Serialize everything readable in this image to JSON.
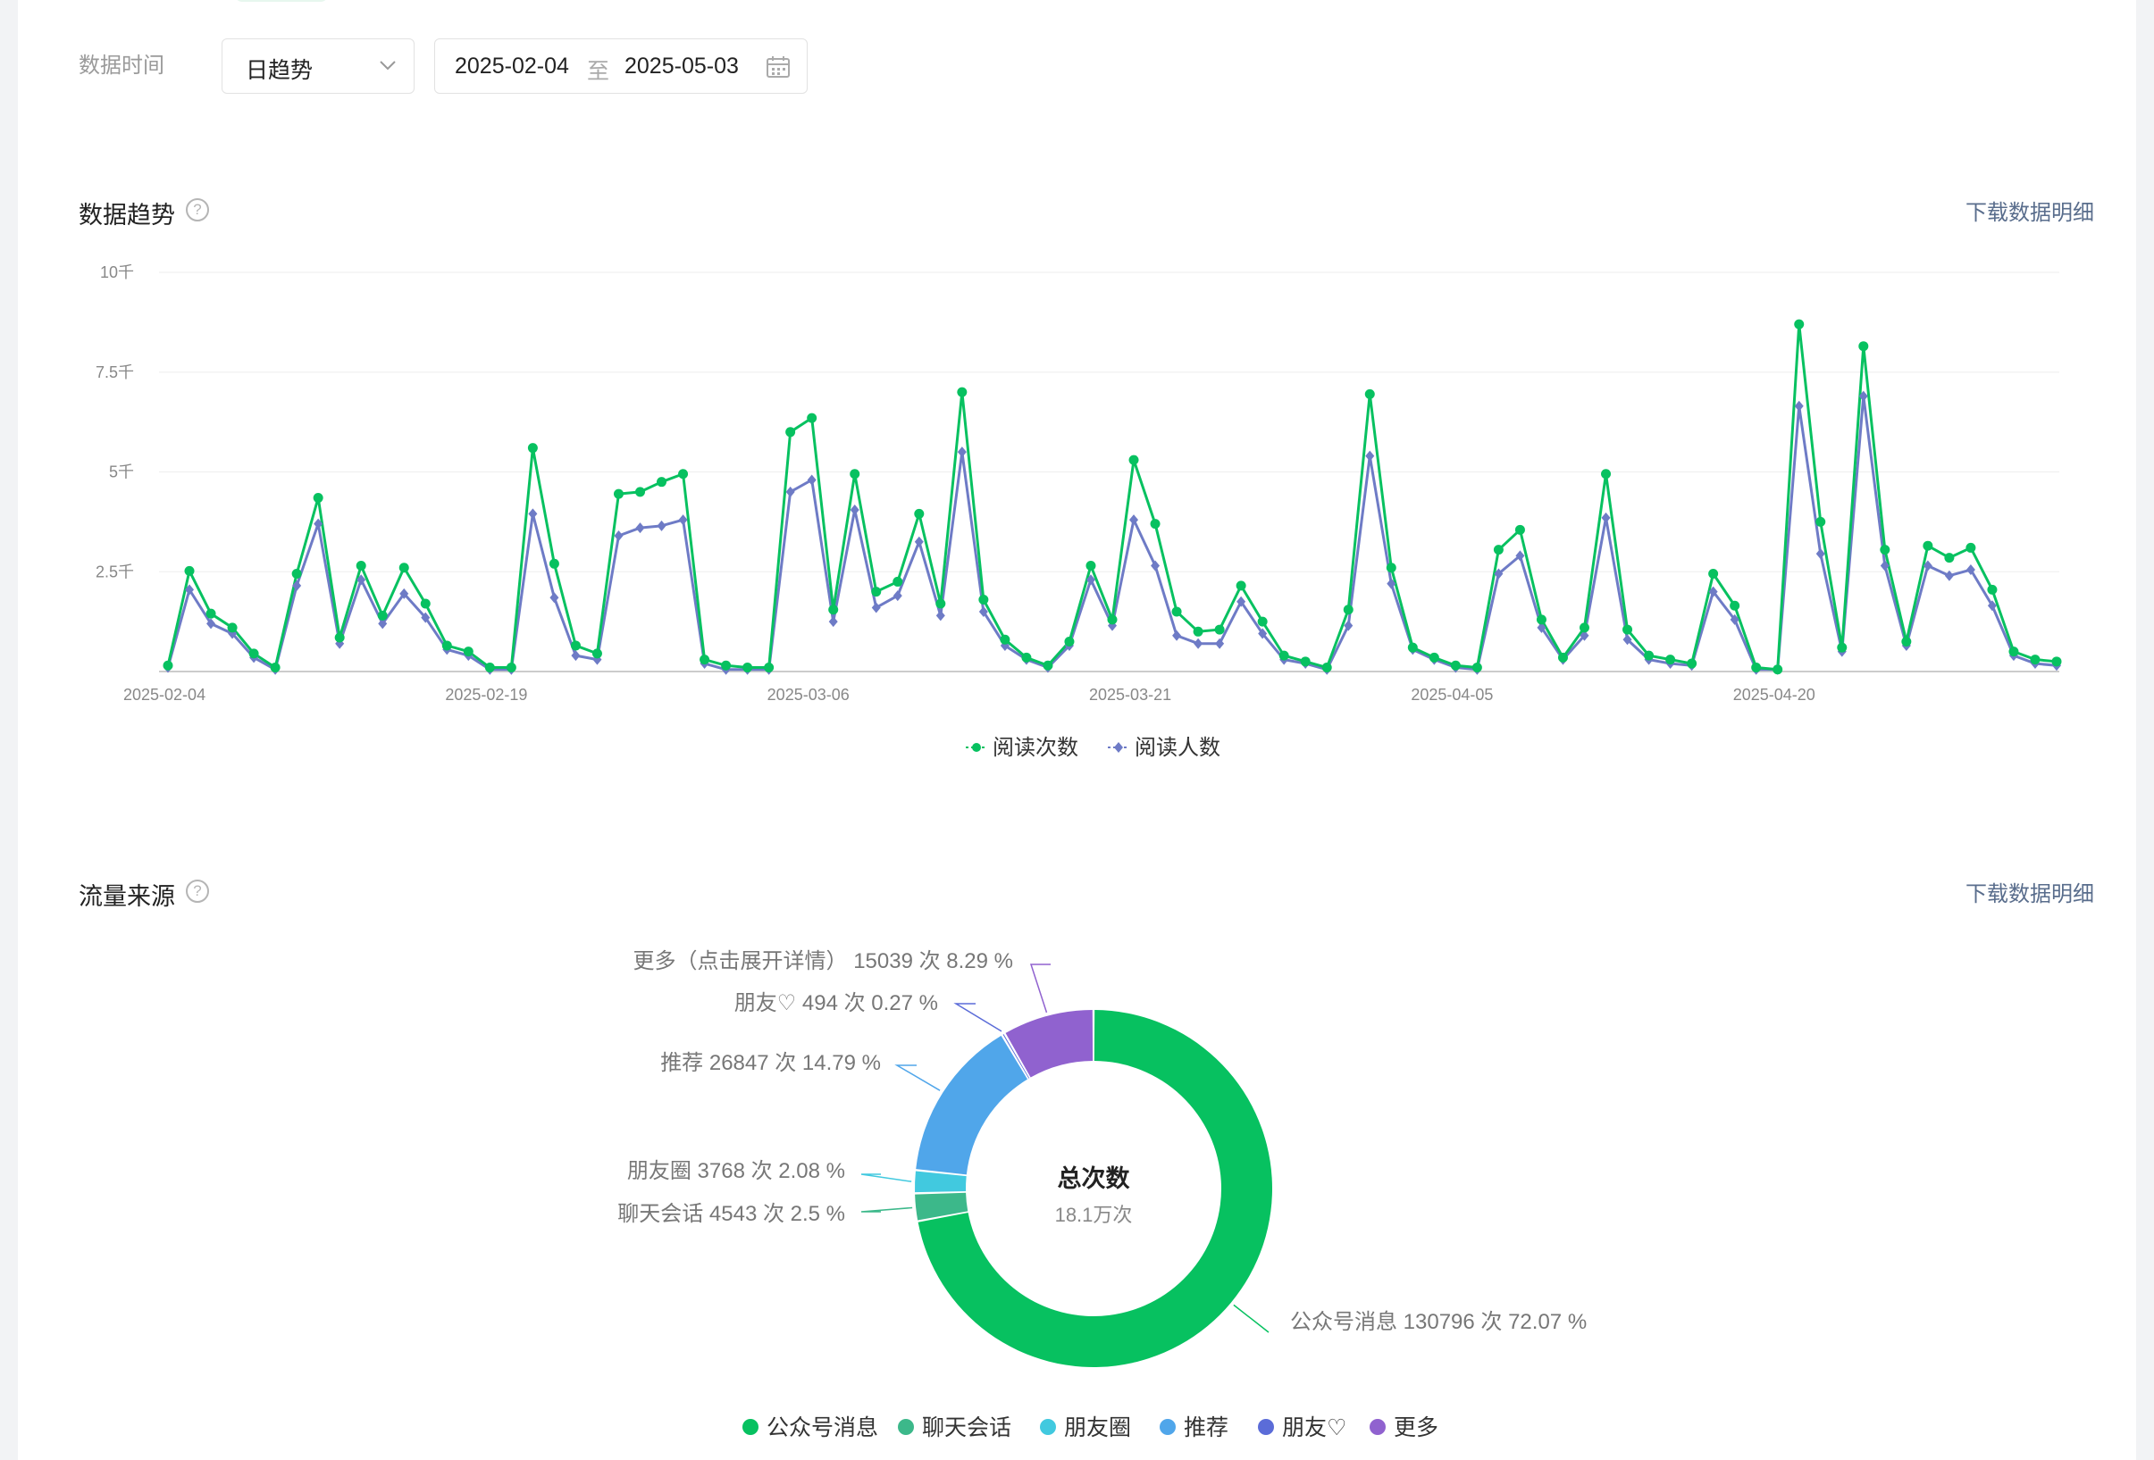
{
  "filter": {
    "label": "数据时间",
    "granularity": "日趋势",
    "start_date": "2025-02-04",
    "separator": "至",
    "end_date": "2025-05-03"
  },
  "trend": {
    "title": "数据趋势",
    "help_icon": "question-circle-icon",
    "download_label": "下载数据明细"
  },
  "traffic": {
    "title": "流量来源",
    "help_icon": "question-circle-icon",
    "download_label": "下载数据明细",
    "center_title": "总次数",
    "center_value": "18.1万次",
    "slice_labels": [
      "公众号消息 130796 次 72.07 %",
      "聊天会话 4543 次 2.5 %",
      "朋友圈 3768 次 2.08 %",
      "推荐 26847 次 14.79 %",
      "朋友♡ 494 次 0.27 %",
      "更多（点击展开详情） 15039 次 8.29 %"
    ]
  },
  "colors": {
    "green": "#07c160",
    "purple_blue": "#6e7bc6",
    "teal": "#3cb88a",
    "cyan": "#41c9df",
    "blue": "#50a6ea",
    "indigo": "#5b6cd8",
    "violet": "#9062cf"
  },
  "chart_data": [
    {
      "type": "line",
      "title": "",
      "ylim": [
        0,
        10000
      ],
      "y_ticks": [
        "2.5千",
        "5千",
        "7.5千",
        "10千"
      ],
      "x_tick_labels": [
        "2025-02-04",
        "2025-02-19",
        "2025-03-06",
        "2025-03-21",
        "2025-04-05",
        "2025-04-20"
      ],
      "x": [
        "2025-02-04",
        "2025-02-05",
        "2025-02-06",
        "2025-02-07",
        "2025-02-08",
        "2025-02-09",
        "2025-02-10",
        "2025-02-11",
        "2025-02-12",
        "2025-02-13",
        "2025-02-14",
        "2025-02-15",
        "2025-02-16",
        "2025-02-17",
        "2025-02-18",
        "2025-02-19",
        "2025-02-20",
        "2025-02-21",
        "2025-02-22",
        "2025-02-23",
        "2025-02-24",
        "2025-02-25",
        "2025-02-26",
        "2025-02-27",
        "2025-02-28",
        "2025-03-01",
        "2025-03-02",
        "2025-03-03",
        "2025-03-04",
        "2025-03-05",
        "2025-03-06",
        "2025-03-07",
        "2025-03-08",
        "2025-03-09",
        "2025-03-10",
        "2025-03-11",
        "2025-03-12",
        "2025-03-13",
        "2025-03-14",
        "2025-03-15",
        "2025-03-16",
        "2025-03-17",
        "2025-03-18",
        "2025-03-19",
        "2025-03-20",
        "2025-03-21",
        "2025-03-22",
        "2025-03-23",
        "2025-03-24",
        "2025-03-25",
        "2025-03-26",
        "2025-03-27",
        "2025-03-28",
        "2025-03-29",
        "2025-03-30",
        "2025-03-31",
        "2025-04-01",
        "2025-04-02",
        "2025-04-03",
        "2025-04-04",
        "2025-04-05",
        "2025-04-06",
        "2025-04-07",
        "2025-04-08",
        "2025-04-09",
        "2025-04-10",
        "2025-04-11",
        "2025-04-12",
        "2025-04-13",
        "2025-04-14",
        "2025-04-15",
        "2025-04-16",
        "2025-04-17",
        "2025-04-18",
        "2025-04-19",
        "2025-04-20",
        "2025-04-21",
        "2025-04-22",
        "2025-04-23",
        "2025-04-24",
        "2025-04-25",
        "2025-04-26",
        "2025-04-27",
        "2025-04-28",
        "2025-04-29",
        "2025-04-30",
        "2025-05-01",
        "2025-05-02",
        "2025-05-03"
      ],
      "series": [
        {
          "name": "阅读次数",
          "color": "#07c160",
          "marker": "circle",
          "values": [
            150,
            2520,
            1450,
            1100,
            450,
            100,
            2450,
            4350,
            850,
            2650,
            1400,
            2600,
            1700,
            650,
            500,
            100,
            100,
            5600,
            2700,
            650,
            450,
            4450,
            4500,
            4750,
            4950,
            300,
            150,
            100,
            100,
            6000,
            6350,
            1550,
            4950,
            2000,
            2250,
            3950,
            1700,
            7000,
            1800,
            800,
            350,
            150,
            750,
            2650,
            1300,
            5300,
            3700,
            1500,
            1000,
            1050,
            2150,
            1250,
            400,
            250,
            100,
            1550,
            6950,
            2600,
            600,
            350,
            150,
            100,
            3050,
            3550,
            1300,
            350,
            1100,
            4950,
            1050,
            400,
            300,
            200,
            2450,
            1650,
            100,
            50,
            8700,
            3750,
            600,
            8150,
            3050,
            750,
            3150,
            2850,
            3100,
            2050,
            500,
            300,
            250
          ]
        },
        {
          "name": "阅读人数",
          "color": "#6e7bc6",
          "marker": "diamond",
          "values": [
            100,
            2050,
            1200,
            950,
            350,
            50,
            2150,
            3700,
            700,
            2300,
            1200,
            1950,
            1350,
            550,
            400,
            50,
            50,
            3950,
            1850,
            400,
            300,
            3400,
            3600,
            3650,
            3800,
            200,
            50,
            50,
            50,
            4500,
            4800,
            1250,
            4050,
            1600,
            1900,
            3250,
            1400,
            5500,
            1500,
            650,
            300,
            100,
            650,
            2300,
            1150,
            3800,
            2650,
            900,
            700,
            700,
            1750,
            950,
            300,
            200,
            50,
            1150,
            5400,
            2200,
            550,
            300,
            100,
            50,
            2450,
            2900,
            1100,
            300,
            900,
            3850,
            800,
            300,
            200,
            150,
            2000,
            1300,
            50,
            50,
            6650,
            2950,
            500,
            6900,
            2650,
            650,
            2650,
            2400,
            2550,
            1650,
            400,
            200,
            150
          ]
        }
      ]
    },
    {
      "type": "pie",
      "title": "流量来源",
      "center_label": "总次数",
      "center_value": "18.1万次",
      "categories": [
        "公众号消息",
        "聊天会话",
        "朋友圈",
        "推荐",
        "朋友♡",
        "更多"
      ],
      "values": [
        130796,
        4543,
        3768,
        26847,
        494,
        15039
      ],
      "percentages": [
        72.07,
        2.5,
        2.08,
        14.79,
        0.27,
        8.29
      ],
      "colors": [
        "#07c160",
        "#3cb88a",
        "#41c9df",
        "#50a6ea",
        "#5b6cd8",
        "#9062cf"
      ],
      "legend": [
        "公众号消息",
        "聊天会话",
        "朋友圈",
        "推荐",
        "朋友♡",
        "更多"
      ],
      "legend_position": "bottom"
    }
  ]
}
